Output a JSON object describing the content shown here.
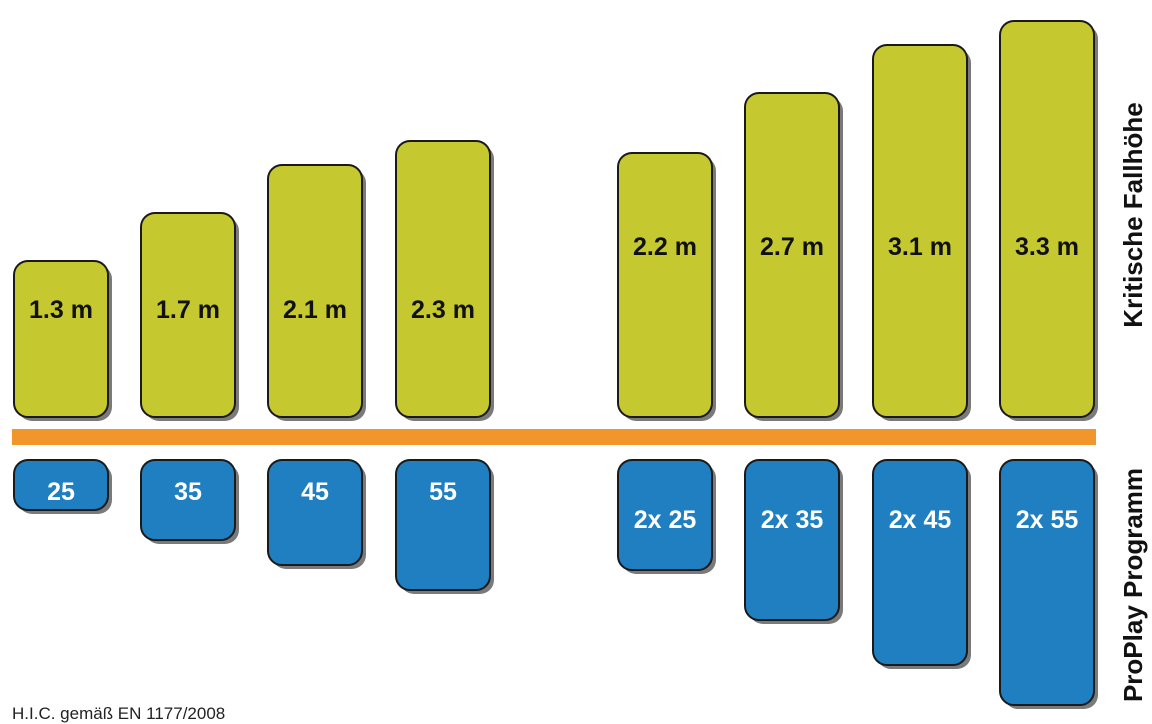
{
  "chart_data": {
    "type": "bar",
    "categories": [
      "25",
      "35",
      "45",
      "55",
      "2x 25",
      "2x 35",
      "2x 45",
      "2x 55"
    ],
    "height_labels": [
      "1.3 m",
      "1.7 m",
      "2.1 m",
      "2.3 m",
      "2.2 m",
      "2.7 m",
      "3.1 m",
      "3.3 m"
    ],
    "values": [
      1.3,
      1.7,
      2.1,
      2.3,
      2.2,
      2.7,
      3.1,
      3.3
    ],
    "program_depths": [
      1,
      1.6,
      2.1,
      2.6,
      2.2,
      3.2,
      4.1,
      4.9
    ],
    "upper_title": "Kritische Fallhöhe",
    "lower_title": "ProPlay Programm",
    "footnote": "H.I.C. gemäß EN 1177/2008",
    "colors": {
      "height_bar": "#c5c92f",
      "program_bar": "#1f7fc1",
      "divider": "#f0962a",
      "outline": "#1a1a1a"
    }
  }
}
